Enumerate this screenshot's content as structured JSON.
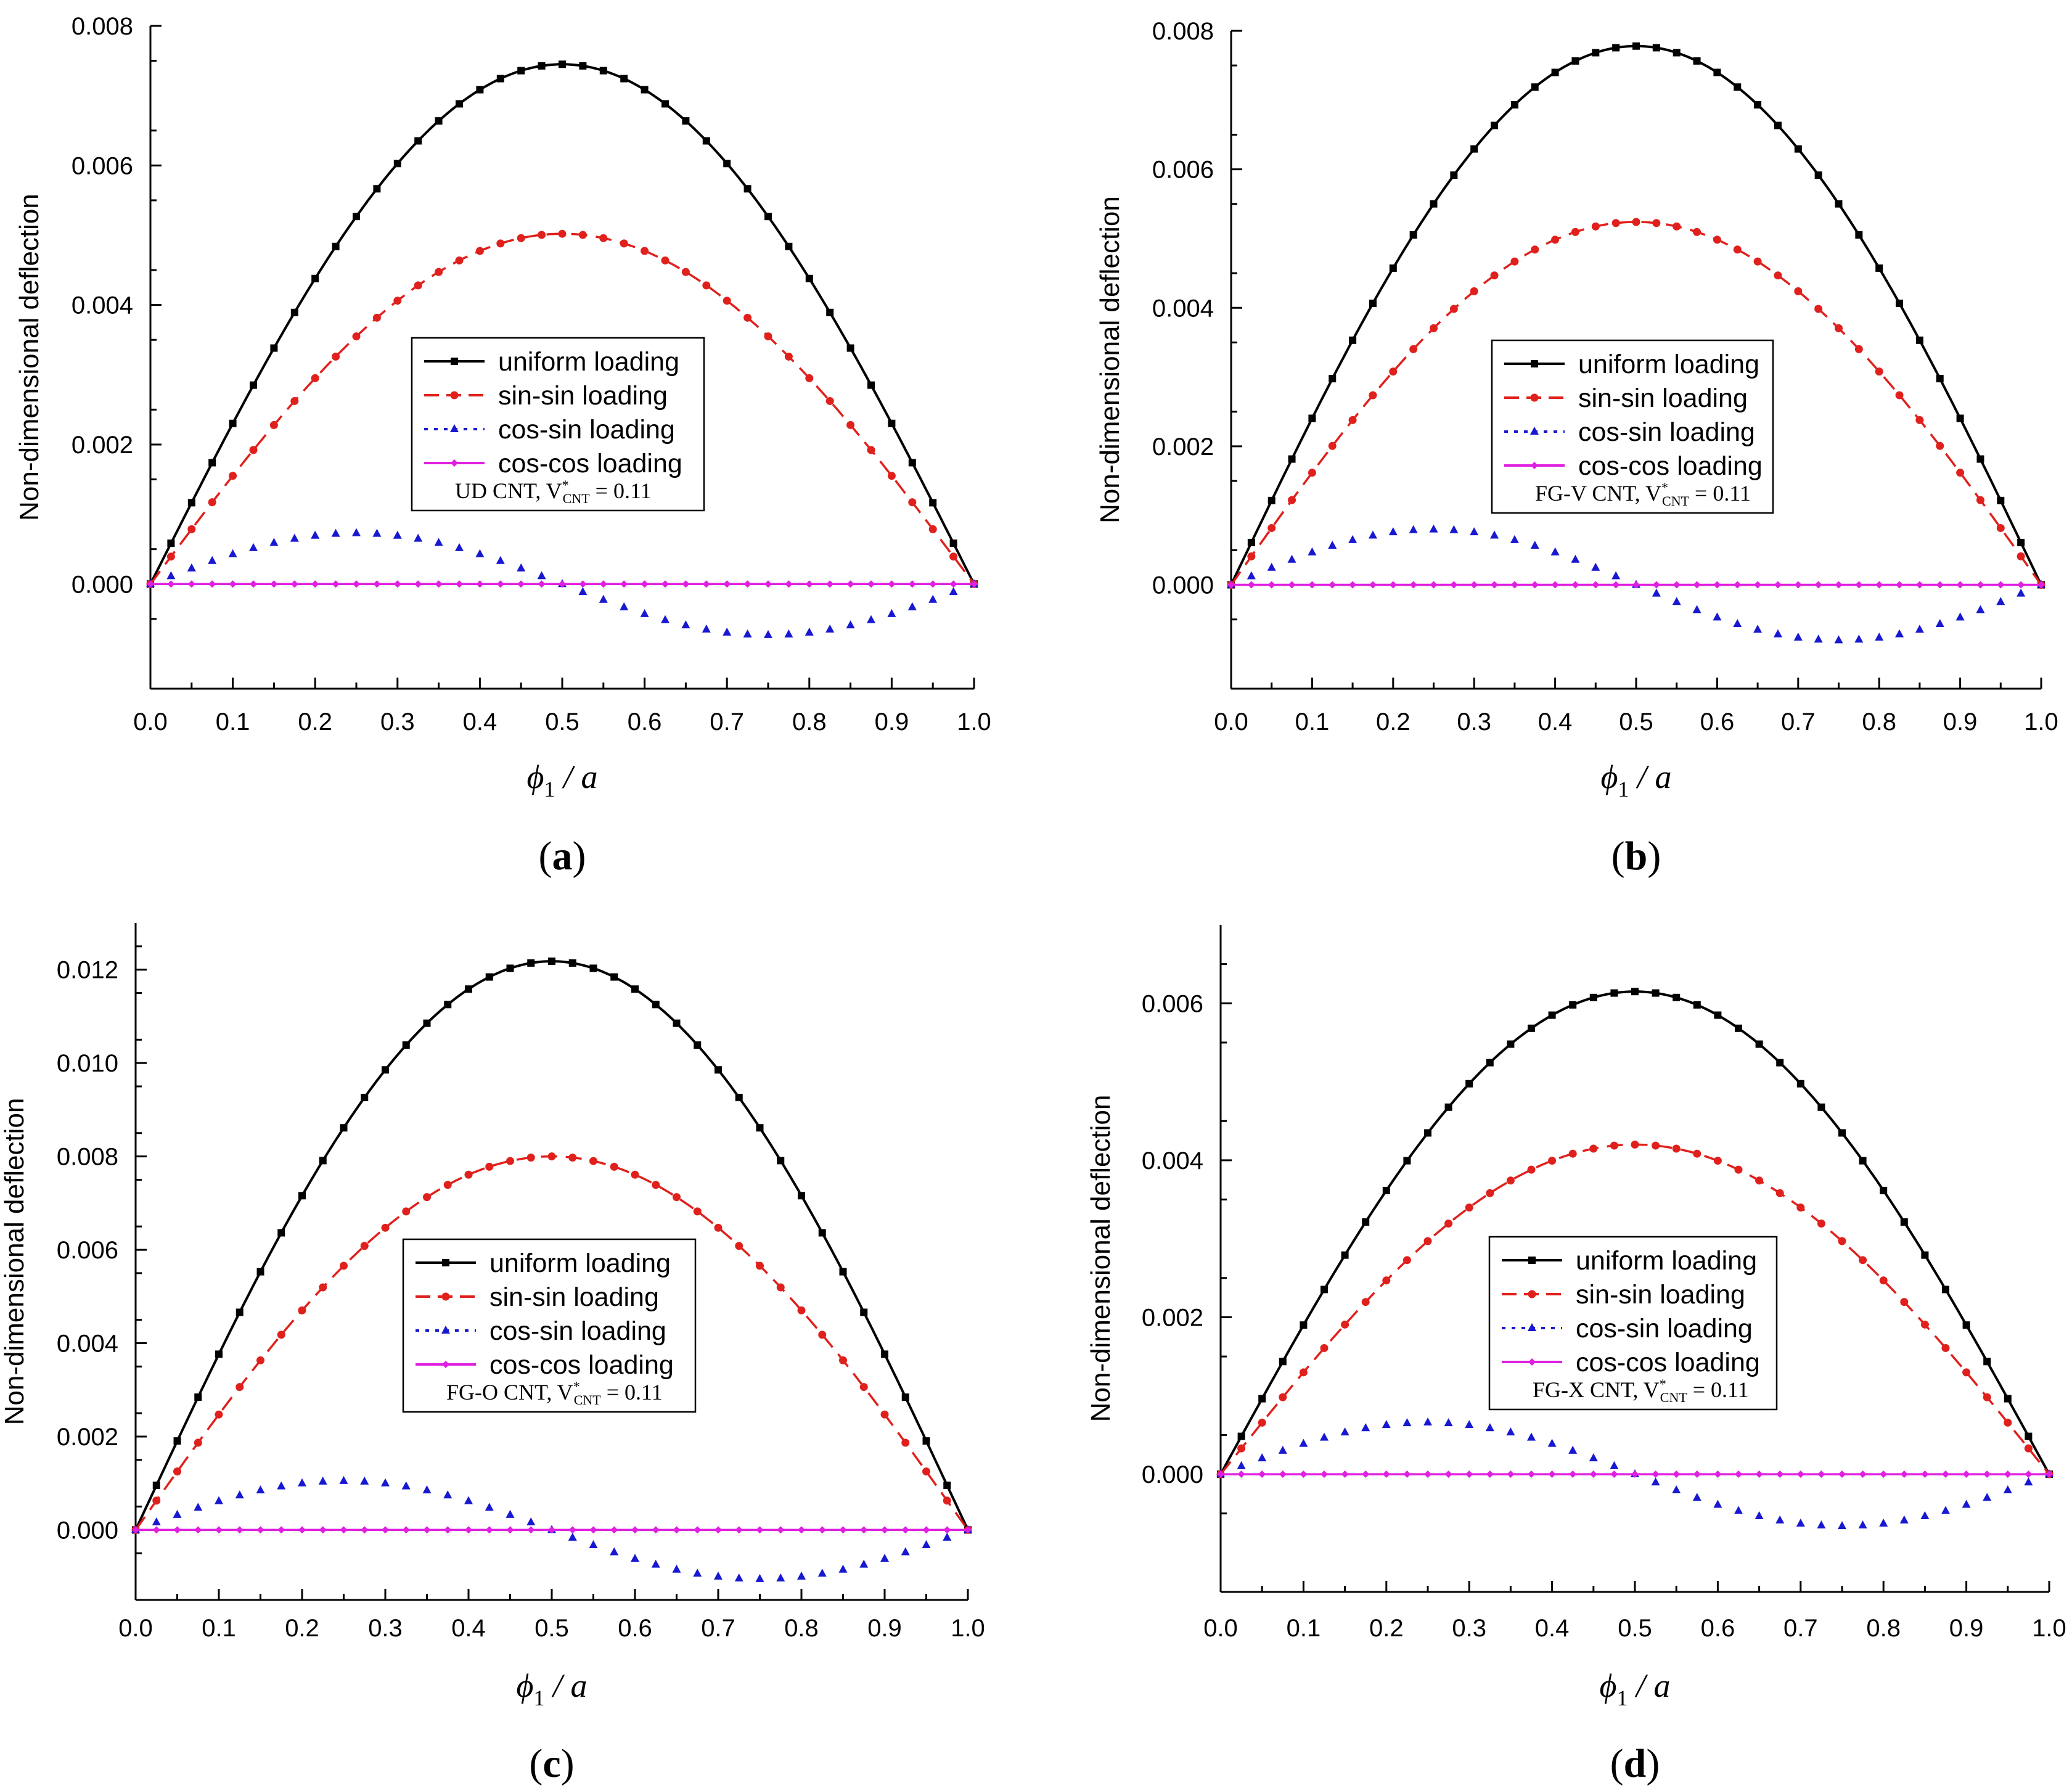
{
  "colors": {
    "uniform": "#000000",
    "sinsin": "#e0201c",
    "cossin": "#1818d0",
    "coscos": "#e020e0"
  },
  "chart_data": [
    {
      "type": "line",
      "panel": "a",
      "caption_open": "(",
      "caption_letter": "a",
      "caption_close": ")",
      "ylabel": "Non-dimensional deflection",
      "xlabel_main": "ϕ",
      "xlabel_sub": "1",
      "xlabel_tail": " / a",
      "xlim": [
        0,
        1
      ],
      "ylim": [
        -0.0015,
        0.008
      ],
      "x_ticks": [
        "0.0",
        "0.1",
        "0.2",
        "0.3",
        "0.4",
        "0.5",
        "0.6",
        "0.7",
        "0.8",
        "0.9",
        "1.0"
      ],
      "y_ticks": [
        "0.000",
        "0.002",
        "0.004",
        "0.006",
        "0.008"
      ],
      "y_tick_values": [
        0,
        0.002,
        0.004,
        0.006,
        0.008
      ],
      "legend_note_main": "UD CNT,  V",
      "legend_note_sup": "*",
      "legend_note_sub": "CNT",
      "legend_note_tail": " = 0.11",
      "series": [
        {
          "name": "uniform loading",
          "peak": 0.00745
        },
        {
          "name": "sin-sin loading",
          "peak": 0.00502
        },
        {
          "name": "cos-sin loading",
          "peak": 0.00073
        },
        {
          "name": "cos-cos loading",
          "peak": 0.0
        }
      ]
    },
    {
      "type": "line",
      "panel": "b",
      "caption_open": "(",
      "caption_letter": "b",
      "caption_close": ")",
      "ylabel": "Non-dimensional deflection",
      "xlabel_main": "ϕ",
      "xlabel_sub": "1",
      "xlabel_tail": " / a",
      "xlim": [
        0,
        1
      ],
      "ylim": [
        -0.0015,
        0.008
      ],
      "x_ticks": [
        "0.0",
        "0.1",
        "0.2",
        "0.3",
        "0.4",
        "0.5",
        "0.6",
        "0.7",
        "0.8",
        "0.9",
        "1.0"
      ],
      "y_ticks": [
        "0.000",
        "0.002",
        "0.004",
        "0.006",
        "0.008"
      ],
      "y_tick_values": [
        0,
        0.002,
        0.004,
        0.006,
        0.008
      ],
      "legend_note_main": "FG-V CNT,  V",
      "legend_note_sup": "*",
      "legend_note_sub": "CNT",
      "legend_note_tail": " = 0.11",
      "series": [
        {
          "name": "uniform loading",
          "peak": 0.00778
        },
        {
          "name": "sin-sin loading",
          "peak": 0.00524
        },
        {
          "name": "cos-sin loading",
          "peak": 0.0008
        },
        {
          "name": "cos-cos loading",
          "peak": 0.0
        }
      ]
    },
    {
      "type": "line",
      "panel": "c",
      "caption_open": "(",
      "caption_letter": "c",
      "caption_close": ")",
      "ylabel": "Non-dimensional deflection",
      "xlabel_main": "ϕ",
      "xlabel_sub": "1",
      "xlabel_tail": " / a",
      "xlim": [
        0,
        1
      ],
      "ylim": [
        -0.0015,
        0.013
      ],
      "x_ticks": [
        "0.0",
        "0.1",
        "0.2",
        "0.3",
        "0.4",
        "0.5",
        "0.6",
        "0.7",
        "0.8",
        "0.9",
        "1.0"
      ],
      "y_ticks": [
        "0.000",
        "0.002",
        "0.004",
        "0.006",
        "0.008",
        "0.010",
        "0.012"
      ],
      "y_tick_values": [
        0,
        0.002,
        0.004,
        0.006,
        0.008,
        0.01,
        0.012
      ],
      "legend_note_main": "FG-O CNT,  V",
      "legend_note_sup": "*",
      "legend_note_sub": "CNT",
      "legend_note_tail": " = 0.11",
      "series": [
        {
          "name": "uniform loading",
          "peak": 0.01218
        },
        {
          "name": "sin-sin loading",
          "peak": 0.008
        },
        {
          "name": "cos-sin loading",
          "peak": 0.00105
        },
        {
          "name": "cos-cos loading",
          "peak": 0.0
        }
      ]
    },
    {
      "type": "line",
      "panel": "d",
      "caption_open": "(",
      "caption_letter": "d",
      "caption_close": ")",
      "ylabel": "Non-dimensional deflection",
      "xlabel_main": "ϕ",
      "xlabel_sub": "1",
      "xlabel_tail": " / a",
      "xlim": [
        0,
        1
      ],
      "ylim": [
        -0.0015,
        0.007
      ],
      "x_ticks": [
        "0.0",
        "0.1",
        "0.2",
        "0.3",
        "0.4",
        "0.5",
        "0.6",
        "0.7",
        "0.8",
        "0.9",
        "1.0"
      ],
      "y_ticks": [
        "0.000",
        "0.002",
        "0.004",
        "0.006"
      ],
      "y_tick_values": [
        0,
        0.002,
        0.004,
        0.006
      ],
      "legend_note_main": "FG-X CNT,  V",
      "legend_note_sup": "*",
      "legend_note_sub": "CNT",
      "legend_note_tail": " = 0.11",
      "series": [
        {
          "name": "uniform loading",
          "peak": 0.00615
        },
        {
          "name": "sin-sin loading",
          "peak": 0.0042
        },
        {
          "name": "cos-sin loading",
          "peak": 0.00066
        },
        {
          "name": "cos-cos loading",
          "peak": 0.0
        }
      ]
    }
  ]
}
